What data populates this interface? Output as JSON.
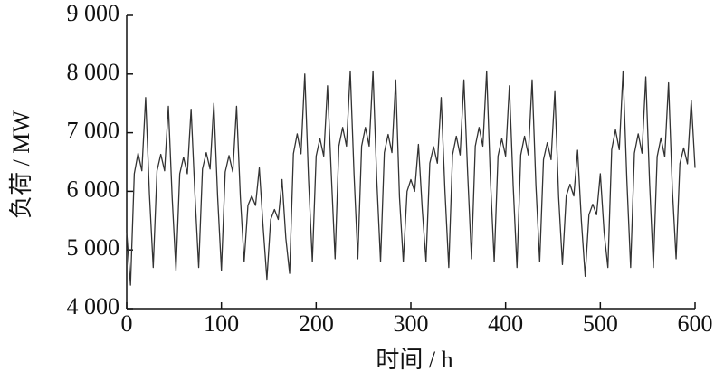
{
  "chart_data": {
    "type": "line",
    "xlabel": "时间 / h",
    "ylabel": "负荷 / MW",
    "x": [
      0,
      4,
      8,
      12,
      16,
      20,
      24,
      28,
      32,
      36,
      40,
      44,
      48,
      52,
      56,
      60,
      64,
      68,
      72,
      76,
      80,
      84,
      88,
      92,
      96,
      100,
      104,
      108,
      112,
      116,
      120,
      124,
      128,
      132,
      136,
      140,
      144,
      148,
      152,
      156,
      160,
      164,
      168,
      172,
      176,
      180,
      184,
      188,
      192,
      196,
      200,
      204,
      208,
      212,
      216,
      220,
      224,
      228,
      232,
      236,
      240,
      244,
      248,
      252,
      256,
      260,
      264,
      268,
      272,
      276,
      280,
      284,
      288,
      292,
      296,
      300,
      304,
      308,
      312,
      316,
      320,
      324,
      328,
      332,
      336,
      340,
      344,
      348,
      352,
      356,
      360,
      364,
      368,
      372,
      376,
      380,
      384,
      388,
      392,
      396,
      400,
      404,
      408,
      412,
      416,
      420,
      424,
      428,
      432,
      436,
      440,
      444,
      448,
      452,
      456,
      460,
      464,
      468,
      472,
      476,
      480,
      484,
      488,
      492,
      496,
      500,
      504,
      508,
      512,
      516,
      520,
      524,
      528,
      532,
      536,
      540,
      544,
      548,
      552,
      556,
      560,
      564,
      568,
      572,
      576,
      580,
      584,
      588,
      592,
      596,
      600
    ],
    "series": [
      {
        "color": "#333333",
        "values": [
          5300,
          4400,
          6300,
          6650,
          6350,
          7600,
          5950,
          4700,
          6350,
          6630,
          6350,
          7450,
          5890,
          4650,
          6300,
          6580,
          6300,
          7400,
          5960,
          4700,
          6380,
          6660,
          6380,
          7500,
          5910,
          4650,
          6330,
          6610,
          6330,
          7450,
          5900,
          4800,
          5760,
          5920,
          5760,
          6400,
          5400,
          4500,
          5520,
          5690,
          5520,
          6200,
          5200,
          4600,
          6640,
          6980,
          6640,
          8000,
          6200,
          4800,
          6600,
          6900,
          6600,
          7800,
          6290,
          4850,
          6770,
          7090,
          6770,
          8050,
          6290,
          4850,
          6770,
          7090,
          6770,
          8050,
          6200,
          4800,
          6660,
          6970,
          6660,
          7900,
          5900,
          4800,
          6000,
          6200,
          6000,
          6800,
          5700,
          4800,
          6480,
          6760,
          6480,
          7600,
          6000,
          4700,
          6620,
          6940,
          6620,
          7900,
          6290,
          4850,
          6770,
          7090,
          6770,
          8050,
          6200,
          4800,
          6600,
          6900,
          6600,
          7800,
          6100,
          4700,
          6620,
          6940,
          6620,
          7900,
          6100,
          4800,
          6540,
          6830,
          6540,
          7700,
          5900,
          4750,
          5920,
          6120,
          5920,
          6700,
          5500,
          4550,
          5600,
          5780,
          5600,
          6300,
          5300,
          4700,
          6710,
          7050,
          6710,
          8050,
          6200,
          4700,
          6650,
          6980,
          6650,
          7950,
          6150,
          4700,
          6590,
          6910,
          6590,
          7850,
          6050,
          4850,
          6470,
          6740,
          6470,
          7550,
          6400
        ]
      }
    ],
    "xlim": [
      0,
      600
    ],
    "xticks": [
      0,
      100,
      200,
      300,
      400,
      500,
      600
    ],
    "ylim": [
      4000,
      9000
    ],
    "yticks": [
      {
        "value": 4000,
        "label": "4 000"
      },
      {
        "value": 5000,
        "label": "5 000"
      },
      {
        "value": 6000,
        "label": "6 000"
      },
      {
        "value": 7000,
        "label": "7 000"
      },
      {
        "value": 8000,
        "label": "8 000"
      },
      {
        "value": 9000,
        "label": "9 000"
      }
    ],
    "grid": false
  }
}
